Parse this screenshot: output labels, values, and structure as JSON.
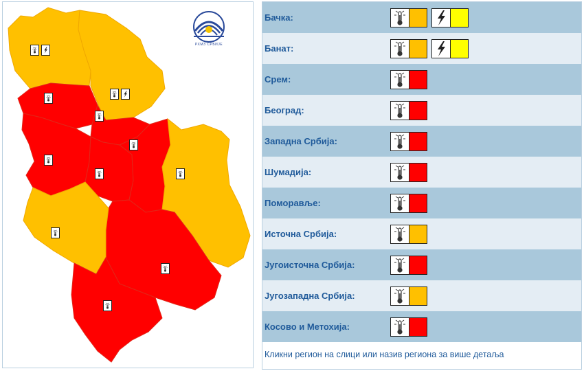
{
  "colors": {
    "red": "#ff0000",
    "orange": "#ffc000",
    "yellow": "#ffff00",
    "link": "#1f5a9a"
  },
  "map": {
    "logo_text": "РХМЗ СРБИЈЕ",
    "regions": [
      {
        "id": "backa",
        "level": "orange"
      },
      {
        "id": "banat",
        "level": "orange"
      },
      {
        "id": "srem",
        "level": "red"
      },
      {
        "id": "beograd",
        "level": "red"
      },
      {
        "id": "zapadna",
        "level": "red"
      },
      {
        "id": "sumadija",
        "level": "red"
      },
      {
        "id": "pomoravlje",
        "level": "red"
      },
      {
        "id": "istocna",
        "level": "orange"
      },
      {
        "id": "jugoistocna",
        "level": "red"
      },
      {
        "id": "jugozapadna",
        "level": "orange"
      },
      {
        "id": "kosovo",
        "level": "red"
      }
    ]
  },
  "table": {
    "rows": [
      {
        "label": "Бачка:",
        "warnings": [
          {
            "icon": "thermometer-icon",
            "level": "orange"
          },
          {
            "icon": "lightning-icon",
            "level": "yellow"
          }
        ]
      },
      {
        "label": "Банат:",
        "warnings": [
          {
            "icon": "thermometer-icon",
            "level": "orange"
          },
          {
            "icon": "lightning-icon",
            "level": "yellow"
          }
        ]
      },
      {
        "label": "Срем:",
        "warnings": [
          {
            "icon": "thermometer-icon",
            "level": "red"
          }
        ]
      },
      {
        "label": "Београд:",
        "warnings": [
          {
            "icon": "thermometer-icon",
            "level": "red"
          }
        ]
      },
      {
        "label": "Западна Србија:",
        "warnings": [
          {
            "icon": "thermometer-icon",
            "level": "red"
          }
        ]
      },
      {
        "label": "Шумадија:",
        "warnings": [
          {
            "icon": "thermometer-icon",
            "level": "red"
          }
        ]
      },
      {
        "label": "Поморавље:",
        "warnings": [
          {
            "icon": "thermometer-icon",
            "level": "red"
          }
        ]
      },
      {
        "label": "Источна Србија:",
        "warnings": [
          {
            "icon": "thermometer-icon",
            "level": "orange"
          }
        ]
      },
      {
        "label": "Југоисточна Србија:",
        "warnings": [
          {
            "icon": "thermometer-icon",
            "level": "red"
          }
        ]
      },
      {
        "label": "Југозападна Србија:",
        "warnings": [
          {
            "icon": "thermometer-icon",
            "level": "orange"
          }
        ]
      },
      {
        "label": "Косово и Метохија:",
        "warnings": [
          {
            "icon": "thermometer-icon",
            "level": "red"
          }
        ]
      }
    ],
    "footer": "Кликни регион на слици или назив региона за више детаља"
  }
}
